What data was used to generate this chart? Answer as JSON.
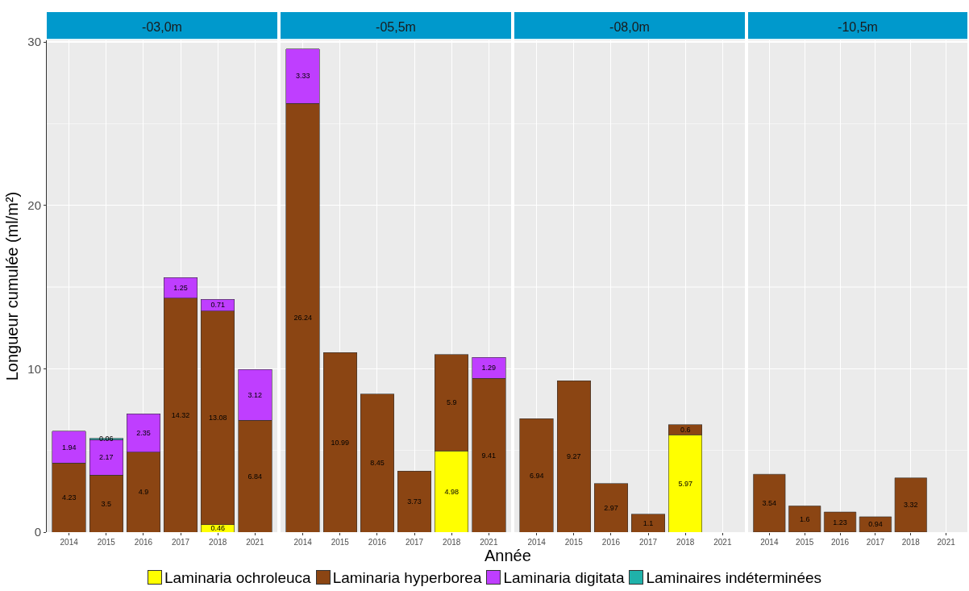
{
  "chart_data": [
    {
      "type": "bar",
      "title": "-03,0m",
      "ylabel": "Longueur cumulée (ml/m²)",
      "categories": [
        "2014",
        "2015",
        "2016",
        "2017",
        "2018",
        "2021"
      ],
      "stacked": true,
      "data_labels": true,
      "grid": true,
      "legend": "bottom",
      "ylim": [
        0,
        30.1
      ],
      "yticks": [
        0,
        10,
        20,
        30
      ],
      "series": [
        {
          "name": "Laminaria ochroleuca",
          "color": "#ffff00",
          "values": [
            null,
            null,
            null,
            null,
            0.46,
            null
          ]
        },
        {
          "name": "Laminaria hyperborea",
          "color": "#8b4513",
          "values": [
            4.23,
            3.5,
            4.9,
            14.32,
            13.08,
            6.84
          ]
        },
        {
          "name": "Laminaria digitata",
          "color": "#bf3eff",
          "values": [
            1.94,
            2.17,
            2.35,
            1.25,
            0.71,
            3.12
          ]
        },
        {
          "name": "Laminaires indéterminées",
          "color": "#20b2aa",
          "values": [
            null,
            0.06,
            null,
            null,
            null,
            null
          ]
        }
      ]
    },
    {
      "type": "bar",
      "title": "-05,5m",
      "xlabel": "Année",
      "categories": [
        "2014",
        "2015",
        "2016",
        "2017",
        "2018",
        "2021"
      ],
      "stacked": true,
      "data_labels": true,
      "grid": true,
      "legend": "bottom",
      "tick_labels": "x",
      "ylim": [
        0,
        30.1
      ],
      "yticks": [
        0,
        10,
        20,
        30
      ],
      "series": [
        {
          "name": "Laminaria ochroleuca",
          "color": "#ffff00",
          "values": [
            null,
            null,
            null,
            null,
            4.98,
            null
          ]
        },
        {
          "name": "Laminaria hyperborea",
          "color": "#8b4513",
          "values": [
            26.24,
            10.99,
            8.45,
            3.73,
            5.9,
            9.41
          ]
        },
        {
          "name": "Laminaria digitata",
          "color": "#bf3eff",
          "values": [
            3.33,
            null,
            null,
            null,
            null,
            1.29
          ]
        }
      ]
    },
    {
      "type": "bar",
      "title": "-08,0m",
      "categories": [
        "2014",
        "2015",
        "2016",
        "2017",
        "2018",
        "2021"
      ],
      "stacked": true,
      "data_labels": true,
      "grid": true,
      "legend": "bottom",
      "tick_labels": "x",
      "ylim": [
        0,
        30.1
      ],
      "yticks": [
        0,
        10,
        20,
        30
      ],
      "series": [
        {
          "name": "Laminaria ochroleuca",
          "color": "#ffff00",
          "values": [
            null,
            null,
            null,
            null,
            5.97,
            null
          ]
        },
        {
          "name": "Laminaria hyperborea",
          "color": "#8b4513",
          "values": [
            6.94,
            9.27,
            2.97,
            1.1,
            0.6,
            null
          ]
        }
      ]
    },
    {
      "type": "bar",
      "title": "-10,5m",
      "categories": [
        "2014",
        "2015",
        "2016",
        "2017",
        "2018",
        "2021"
      ],
      "stacked": true,
      "data_labels": true,
      "grid": true,
      "legend": "bottom",
      "tick_labels": "x",
      "ylim": [
        0,
        30.1
      ],
      "yticks": [
        0,
        10,
        20,
        30
      ],
      "series": [
        {
          "name": "Laminaria hyperborea",
          "color": "#8b4513",
          "values": [
            3.54,
            1.6,
            1.23,
            0.94,
            3.32,
            null
          ]
        }
      ]
    }
  ]
}
